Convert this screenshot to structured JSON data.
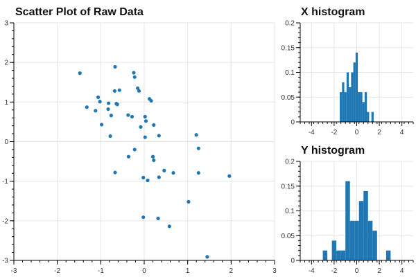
{
  "chart_data": [
    {
      "type": "scatter",
      "title": "Scatter Plot of Raw Data",
      "xlim": [
        -3,
        3
      ],
      "ylim": [
        -3,
        3
      ],
      "xticks": [
        -3,
        -2,
        -1,
        0,
        1,
        2,
        3
      ],
      "yticks": [
        -3,
        -2,
        -1,
        0,
        1,
        2,
        3
      ],
      "grid": true,
      "color": "#1f77b4",
      "x": [
        -1.48,
        -0.67,
        -0.24,
        -0.22,
        -0.15,
        -0.12,
        -0.68,
        -0.57,
        -1.06,
        -1.02,
        -0.64,
        -1.32,
        -1.12,
        -0.82,
        -0.62,
        0.12,
        0.16,
        -0.83,
        -0.37,
        -0.28,
        0.02,
        -0.76,
        0.04,
        0.22,
        0.34,
        -0.08,
        -0.98,
        0.02,
        -0.78,
        1.2,
        -0.22,
        1.25,
        0.2,
        -0.36,
        0.22,
        0.46,
        0.34,
        -0.67,
        0.67,
        1.25,
        -0.02,
        0.08,
        1.96,
        1.02,
        -0.02,
        0.32,
        0.58,
        1.45
      ],
      "y": [
        1.73,
        1.89,
        1.74,
        1.63,
        1.35,
        1.28,
        1.28,
        1.3,
        1.12,
        1.01,
        0.96,
        0.87,
        0.78,
        0.97,
        0.94,
        1.08,
        1.03,
        0.82,
        0.67,
        0.63,
        0.63,
        0.66,
        0.52,
        0.42,
        0.15,
        0.37,
        0.43,
        0.11,
        0.14,
        0.17,
        -0.2,
        -0.17,
        -0.38,
        -0.38,
        -0.47,
        -0.73,
        -0.9,
        -0.78,
        -0.79,
        -0.79,
        -0.91,
        -0.98,
        -0.87,
        -1.52,
        -1.91,
        -1.94,
        -2.14,
        -2.91
      ]
    },
    {
      "type": "bar",
      "title": "X histogram",
      "xlim": [
        -5,
        5
      ],
      "ylim": [
        0,
        0.2
      ],
      "xticks": [
        -4,
        -2,
        0,
        2,
        4
      ],
      "yticks": [
        0,
        0.05,
        0.1,
        0.15,
        0.2
      ],
      "grid": true,
      "color": "#1f77b4",
      "bins": [
        {
          "x0": -1.5,
          "x1": -1.3,
          "value": 0.06
        },
        {
          "x0": -1.3,
          "x1": -1.1,
          "value": 0.08
        },
        {
          "x0": -1.1,
          "x1": -0.9,
          "value": 0.06
        },
        {
          "x0": -0.9,
          "x1": -0.7,
          "value": 0.1
        },
        {
          "x0": -0.7,
          "x1": -0.5,
          "value": 0.07
        },
        {
          "x0": -0.5,
          "x1": -0.3,
          "value": 0.1
        },
        {
          "x0": -0.3,
          "x1": -0.1,
          "value": 0.12
        },
        {
          "x0": -0.1,
          "x1": 0.1,
          "value": 0.14
        },
        {
          "x0": 0.1,
          "x1": 0.3,
          "value": 0.06
        },
        {
          "x0": 0.3,
          "x1": 0.5,
          "value": 0.06
        },
        {
          "x0": 0.5,
          "x1": 0.7,
          "value": 0.04
        },
        {
          "x0": 0.7,
          "x1": 0.9,
          "value": 0.06
        },
        {
          "x0": 0.9,
          "x1": 1.1,
          "value": 0.02
        },
        {
          "x0": 1.1,
          "x1": 1.3,
          "value": 0.0
        },
        {
          "x0": 1.3,
          "x1": 1.5,
          "value": 0.02
        }
      ]
    },
    {
      "type": "bar",
      "title": "Y histogram",
      "xlim": [
        -5,
        5
      ],
      "ylim": [
        0,
        0.2
      ],
      "xticks": [
        -4,
        -2,
        0,
        2,
        4
      ],
      "yticks": [
        0,
        0.05,
        0.1,
        0.15,
        0.2
      ],
      "grid": true,
      "color": "#1f77b4",
      "bins": [
        {
          "x0": -3.0,
          "x1": -2.6,
          "value": 0.02
        },
        {
          "x0": -2.2,
          "x1": -1.8,
          "value": 0.04
        },
        {
          "x0": -1.8,
          "x1": -1.4,
          "value": 0.02
        },
        {
          "x0": -1.4,
          "x1": -1.0,
          "value": 0.02
        },
        {
          "x0": -1.0,
          "x1": -0.6,
          "value": 0.16
        },
        {
          "x0": -0.6,
          "x1": -0.2,
          "value": 0.08
        },
        {
          "x0": -0.2,
          "x1": 0.2,
          "value": 0.08
        },
        {
          "x0": 0.2,
          "x1": 0.6,
          "value": 0.12
        },
        {
          "x0": 0.6,
          "x1": 1.0,
          "value": 0.14
        },
        {
          "x0": 1.0,
          "x1": 1.4,
          "value": 0.08
        },
        {
          "x0": 1.4,
          "x1": 1.8,
          "value": 0.06
        },
        {
          "x0": 2.6,
          "x1": 3.0,
          "value": 0.02
        }
      ]
    }
  ]
}
